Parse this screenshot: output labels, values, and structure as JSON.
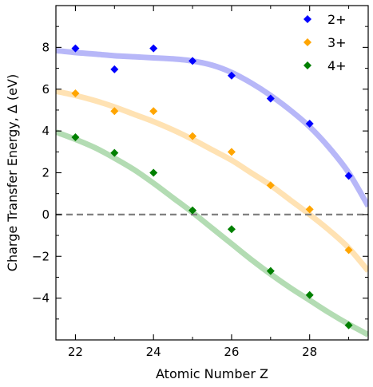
{
  "chart_data": {
    "type": "scatter",
    "title": "",
    "xlabel": "Atomic Number Z",
    "ylabel": "Charge Transfer Energy, Δ (eV)",
    "xlim": [
      21.5,
      29.5
    ],
    "ylim": [
      -6.0,
      10.0
    ],
    "xticks": [
      22,
      24,
      26,
      28
    ],
    "xticks_minor": [
      23,
      25,
      27,
      29
    ],
    "yticks": [
      -4,
      -2,
      0,
      2,
      4,
      6,
      8
    ],
    "yticks_minor": [
      -5,
      -3,
      -1,
      1,
      3,
      5,
      7,
      9
    ],
    "legend_position": "top-right",
    "reference_line": {
      "y": 0,
      "style": "dashed",
      "color": "#808080"
    },
    "series": [
      {
        "name": "2+",
        "color": "#0000ff",
        "fit_color": "#b7b7f8",
        "x": [
          22,
          23,
          24,
          25,
          26,
          27,
          28,
          29
        ],
        "y": [
          7.95,
          6.95,
          7.95,
          7.35,
          6.65,
          5.55,
          4.35,
          1.85
        ],
        "fit": [
          [
            21.5,
            7.85
          ],
          [
            22,
            7.75
          ],
          [
            22.5,
            7.68
          ],
          [
            23,
            7.6
          ],
          [
            23.5,
            7.55
          ],
          [
            24,
            7.5
          ],
          [
            24.5,
            7.45
          ],
          [
            25,
            7.35
          ],
          [
            25.5,
            7.15
          ],
          [
            26,
            6.8
          ],
          [
            26.5,
            6.3
          ],
          [
            27,
            5.7
          ],
          [
            27.5,
            5.0
          ],
          [
            28,
            4.2
          ],
          [
            28.5,
            3.2
          ],
          [
            29,
            2.0
          ],
          [
            29.5,
            0.4
          ]
        ]
      },
      {
        "name": "3+",
        "color": "#ffa500",
        "fit_color": "#ffe2b3",
        "x": [
          22,
          23,
          24,
          25,
          26,
          27,
          28,
          29
        ],
        "y": [
          5.8,
          4.95,
          4.95,
          3.75,
          3.0,
          1.4,
          0.25,
          -1.7
        ],
        "fit": [
          [
            21.5,
            5.9
          ],
          [
            22,
            5.7
          ],
          [
            22.5,
            5.45
          ],
          [
            23,
            5.15
          ],
          [
            23.5,
            4.8
          ],
          [
            24,
            4.45
          ],
          [
            24.5,
            4.05
          ],
          [
            25,
            3.6
          ],
          [
            25.5,
            3.1
          ],
          [
            26,
            2.6
          ],
          [
            26.5,
            2.0
          ],
          [
            27,
            1.4
          ],
          [
            27.5,
            0.7
          ],
          [
            28,
            0.0
          ],
          [
            28.5,
            -0.75
          ],
          [
            29,
            -1.6
          ],
          [
            29.5,
            -2.7
          ]
        ]
      },
      {
        "name": "4+",
        "color": "#008000",
        "fit_color": "#b3dcb3",
        "x": [
          22,
          23,
          24,
          25,
          26,
          27,
          28,
          29
        ],
        "y": [
          3.7,
          2.95,
          2.0,
          0.2,
          -0.7,
          -2.7,
          -3.85,
          -5.3
        ],
        "fit": [
          [
            21.5,
            3.95
          ],
          [
            22,
            3.6
          ],
          [
            22.5,
            3.2
          ],
          [
            23,
            2.7
          ],
          [
            23.5,
            2.15
          ],
          [
            24,
            1.5
          ],
          [
            24.5,
            0.8
          ],
          [
            25,
            0.1
          ],
          [
            25.5,
            -0.65
          ],
          [
            26,
            -1.4
          ],
          [
            26.5,
            -2.15
          ],
          [
            27,
            -2.85
          ],
          [
            27.5,
            -3.5
          ],
          [
            28,
            -4.1
          ],
          [
            28.5,
            -4.7
          ],
          [
            29,
            -5.25
          ],
          [
            29.5,
            -5.75
          ]
        ]
      }
    ]
  }
}
